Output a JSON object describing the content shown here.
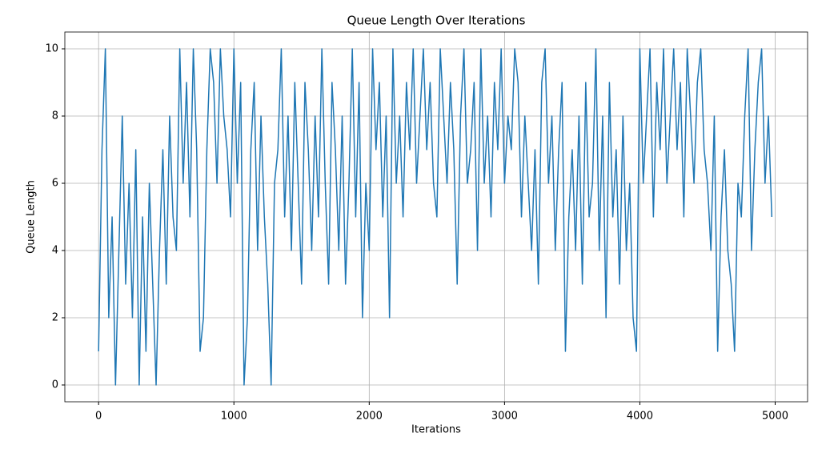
{
  "chart_data": {
    "type": "line",
    "title": "Queue Length Over Iterations",
    "xlabel": "Iterations",
    "ylabel": "Queue Length",
    "x": [
      0,
      25,
      50,
      75,
      100,
      125,
      150,
      175,
      200,
      225,
      250,
      275,
      300,
      325,
      350,
      375,
      400,
      425,
      450,
      475,
      500,
      525,
      550,
      575,
      600,
      625,
      650,
      675,
      700,
      725,
      750,
      775,
      800,
      825,
      850,
      875,
      900,
      925,
      950,
      975,
      1000,
      1025,
      1050,
      1075,
      1100,
      1125,
      1150,
      1175,
      1200,
      1225,
      1250,
      1275,
      1300,
      1325,
      1350,
      1375,
      1400,
      1425,
      1450,
      1475,
      1500,
      1525,
      1550,
      1575,
      1600,
      1625,
      1650,
      1675,
      1700,
      1725,
      1750,
      1775,
      1800,
      1825,
      1850,
      1875,
      1900,
      1925,
      1950,
      1975,
      2000,
      2025,
      2050,
      2075,
      2100,
      2125,
      2150,
      2175,
      2200,
      2225,
      2250,
      2275,
      2300,
      2325,
      2350,
      2375,
      2400,
      2425,
      2450,
      2475,
      2500,
      2525,
      2550,
      2575,
      2600,
      2625,
      2650,
      2675,
      2700,
      2725,
      2750,
      2775,
      2800,
      2825,
      2850,
      2875,
      2900,
      2925,
      2950,
      2975,
      3000,
      3025,
      3050,
      3075,
      3100,
      3125,
      3150,
      3175,
      3200,
      3225,
      3250,
      3275,
      3300,
      3325,
      3350,
      3375,
      3400,
      3425,
      3450,
      3475,
      3500,
      3525,
      3550,
      3575,
      3600,
      3625,
      3650,
      3675,
      3700,
      3725,
      3750,
      3775,
      3800,
      3825,
      3850,
      3875,
      3900,
      3925,
      3950,
      3975,
      4000,
      4025,
      4050,
      4075,
      4100,
      4125,
      4150,
      4175,
      4200,
      4225,
      4250,
      4275,
      4300,
      4325,
      4350,
      4375,
      4400,
      4425,
      4450,
      4475,
      4500,
      4525,
      4550,
      4575,
      4600,
      4625,
      4650,
      4675,
      4700,
      4725,
      4750,
      4775,
      4800,
      4825,
      4850,
      4875,
      4900,
      4925,
      4950,
      4975
    ],
    "series": [
      {
        "name": "Queue Length",
        "color": "#1f77b4",
        "values": [
          1,
          7,
          10,
          2,
          5,
          0,
          4,
          8,
          3,
          6,
          2,
          7,
          0,
          5,
          1,
          6,
          3,
          0,
          4,
          7,
          3,
          8,
          5,
          4,
          10,
          6,
          9,
          5,
          10,
          7,
          1,
          2,
          7,
          10,
          9,
          6,
          10,
          8,
          7,
          5,
          10,
          6,
          9,
          0,
          2,
          7,
          9,
          4,
          8,
          5,
          3,
          0,
          6,
          7,
          10,
          5,
          8,
          4,
          9,
          6,
          3,
          9,
          7,
          4,
          8,
          5,
          10,
          6,
          3,
          9,
          7,
          4,
          8,
          3,
          6,
          10,
          5,
          9,
          2,
          6,
          4,
          10,
          7,
          9,
          5,
          8,
          2,
          10,
          6,
          8,
          5,
          9,
          7,
          10,
          6,
          8,
          10,
          7,
          9,
          6,
          5,
          10,
          8,
          6,
          9,
          7,
          3,
          8,
          10,
          6,
          7,
          9,
          4,
          10,
          6,
          8,
          5,
          9,
          7,
          10,
          6,
          8,
          7,
          10,
          9,
          5,
          8,
          6,
          4,
          7,
          3,
          9,
          10,
          6,
          8,
          4,
          7,
          9,
          1,
          5,
          7,
          4,
          8,
          3,
          9,
          5,
          6,
          10,
          4,
          8,
          2,
          9,
          5,
          7,
          3,
          8,
          4,
          6,
          2,
          1,
          10,
          6,
          8,
          10,
          5,
          9,
          7,
          10,
          6,
          8,
          10,
          7,
          9,
          5,
          10,
          8,
          6,
          9,
          10,
          7,
          6,
          4,
          8,
          1,
          5,
          7,
          4,
          3,
          1,
          6,
          5,
          8,
          10,
          4,
          7,
          9,
          10,
          6,
          8,
          5
        ]
      }
    ],
    "xlim": [
      -249.5,
      5239.5
    ],
    "ylim": [
      -0.5,
      10.5
    ],
    "xticks": [
      0,
      1000,
      2000,
      3000,
      4000,
      5000
    ],
    "yticks": [
      0,
      2,
      4,
      6,
      8,
      10
    ],
    "grid": true
  }
}
